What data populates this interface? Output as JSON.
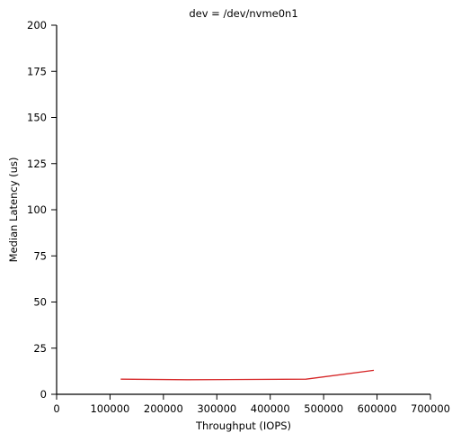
{
  "chart_data": {
    "type": "line",
    "title": "dev = /dev/nvme0n1",
    "xlabel": "Throughput (IOPS)",
    "ylabel": "Median Latency (us)",
    "xlim": [
      0,
      700000
    ],
    "ylim": [
      0,
      200
    ],
    "xticks": [
      0,
      100000,
      200000,
      300000,
      400000,
      500000,
      600000,
      700000
    ],
    "xtick_labels": [
      "0",
      "100000",
      "200000",
      "300000",
      "400000",
      "500000",
      "600000",
      "700000"
    ],
    "yticks": [
      0,
      25,
      50,
      75,
      100,
      125,
      150,
      175,
      200
    ],
    "ytick_labels": [
      "0",
      "25",
      "50",
      "75",
      "100",
      "125",
      "150",
      "175",
      "200"
    ],
    "grid": false,
    "series": [
      {
        "color": "#d62728",
        "x": [
          120000,
          245000,
          467000,
          594000
        ],
        "y": [
          8.2,
          7.9,
          8.2,
          13.0
        ]
      }
    ]
  }
}
